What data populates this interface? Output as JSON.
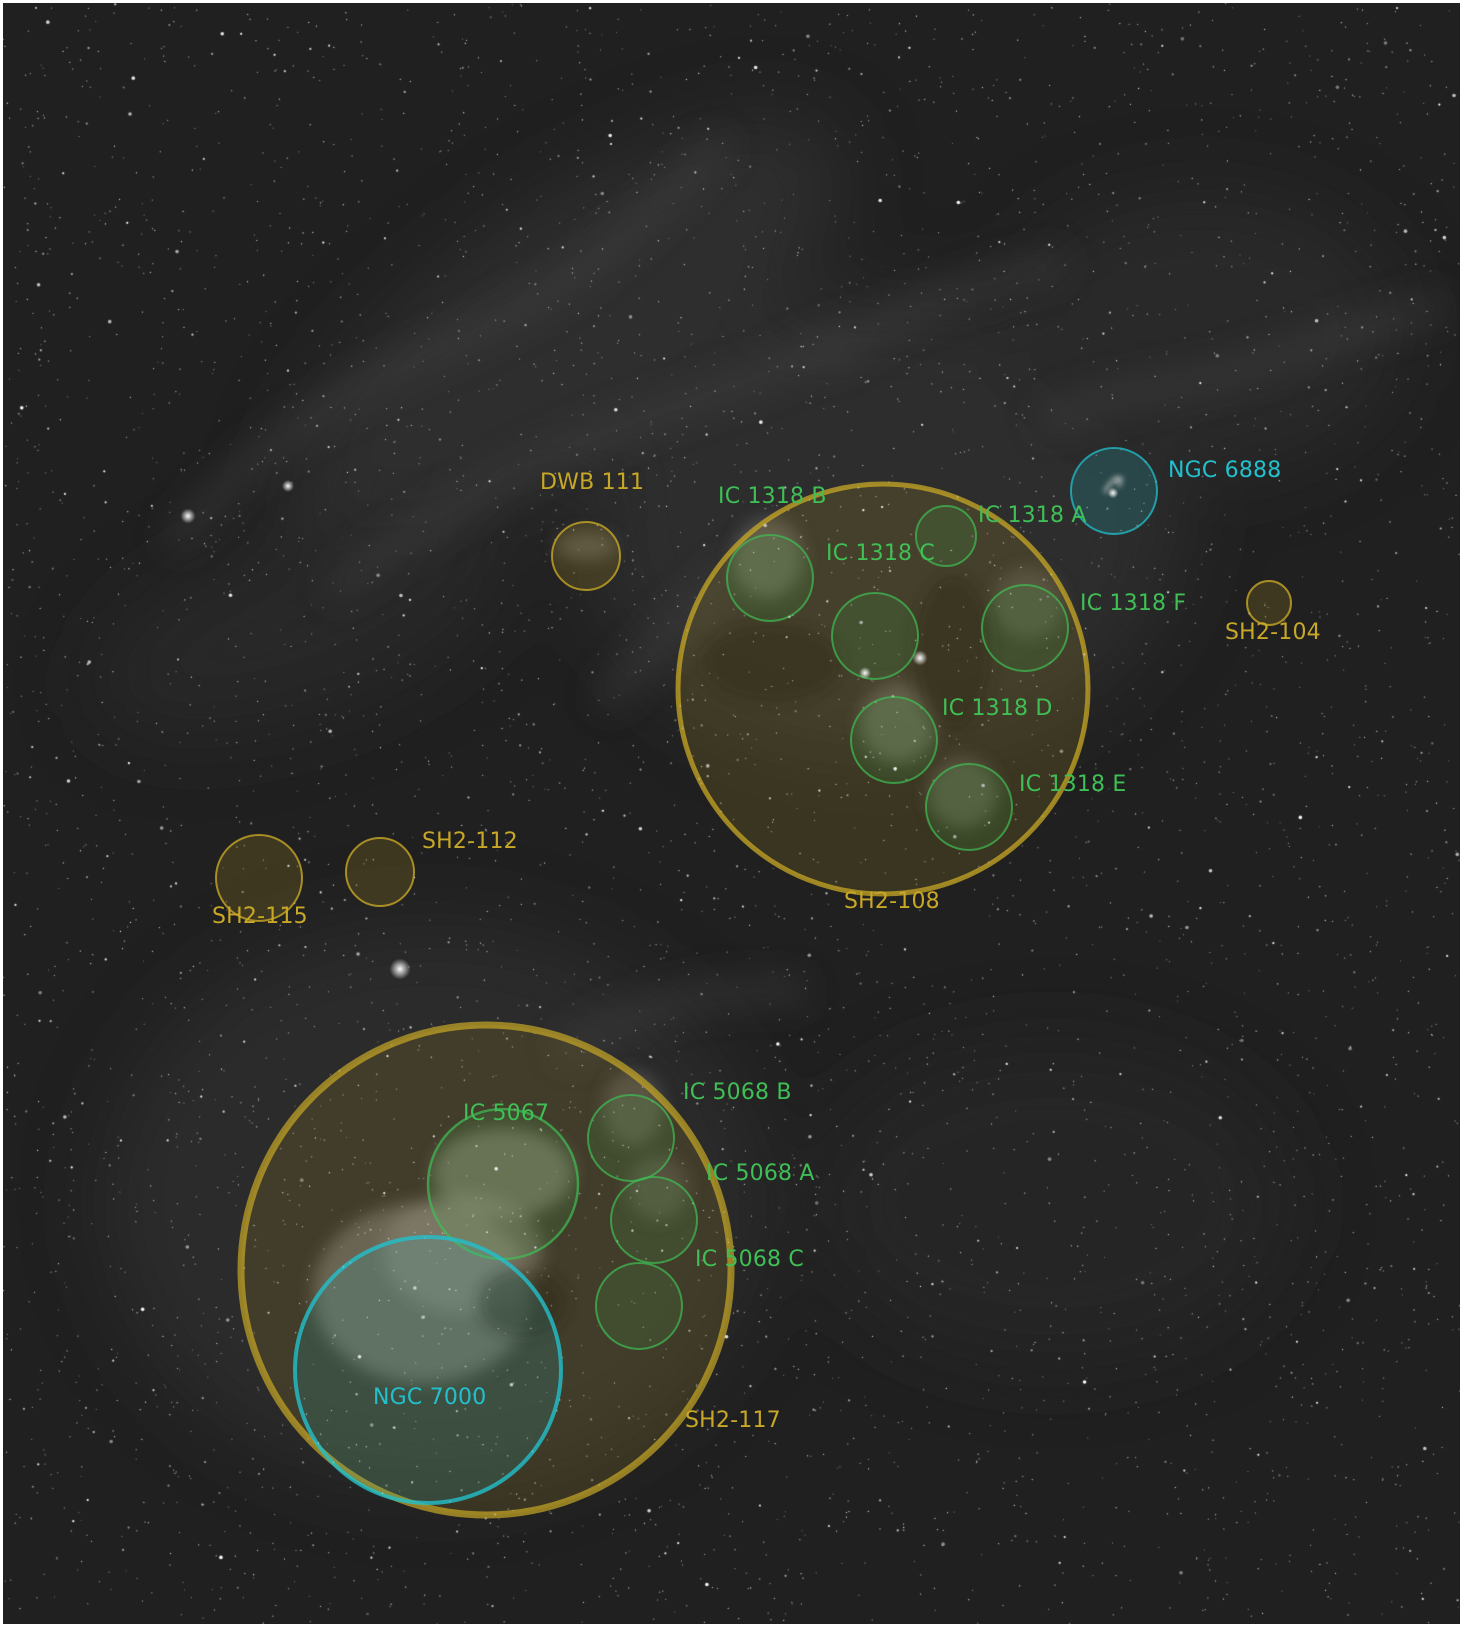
{
  "colors": {
    "sh2": "#c8a826",
    "ic": "#3fbf55",
    "ngc": "#22c0cc",
    "sky": "#202020"
  },
  "objects": [
    {
      "id": "dwb-111",
      "label": "DWB 111",
      "category": "sh2"
    },
    {
      "id": "ic-1318-b",
      "label": "IC 1318 B",
      "category": "ic"
    },
    {
      "id": "ic-1318-a",
      "label": "IC 1318 A",
      "category": "ic"
    },
    {
      "id": "ic-1318-c",
      "label": "IC 1318 C",
      "category": "ic"
    },
    {
      "id": "ic-1318-f",
      "label": "IC 1318 F",
      "category": "ic"
    },
    {
      "id": "ic-1318-d",
      "label": "IC 1318 D",
      "category": "ic"
    },
    {
      "id": "ic-1318-e",
      "label": "IC 1318 E",
      "category": "ic"
    },
    {
      "id": "ngc-6888",
      "label": "NGC 6888",
      "category": "ngc"
    },
    {
      "id": "sh2-104",
      "label": "SH2-104",
      "category": "sh2"
    },
    {
      "id": "sh2-108",
      "label": "SH2-108",
      "category": "sh2"
    },
    {
      "id": "sh2-112",
      "label": "SH2-112",
      "category": "sh2"
    },
    {
      "id": "sh2-115",
      "label": "SH2-115",
      "category": "sh2"
    },
    {
      "id": "sh2-117",
      "label": "SH2-117",
      "category": "sh2"
    },
    {
      "id": "ic-5067",
      "label": "IC 5067",
      "category": "ic"
    },
    {
      "id": "ic-5068-b",
      "label": "IC 5068 B",
      "category": "ic"
    },
    {
      "id": "ic-5068-a",
      "label": "IC 5068 A",
      "category": "ic"
    },
    {
      "id": "ic-5068-c",
      "label": "IC 5068 C",
      "category": "ic"
    },
    {
      "id": "ngc-7000",
      "label": "NGC 7000",
      "category": "ngc"
    }
  ]
}
